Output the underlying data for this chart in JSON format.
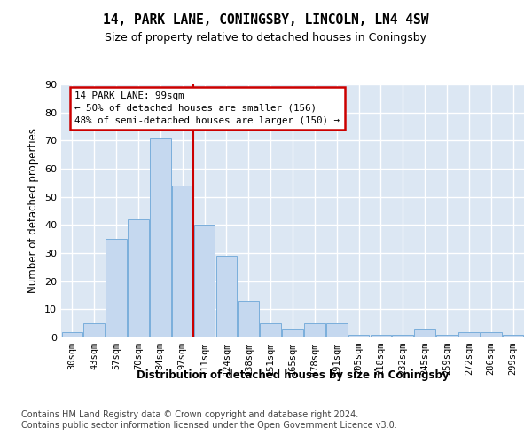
{
  "title": "14, PARK LANE, CONINGSBY, LINCOLN, LN4 4SW",
  "subtitle": "Size of property relative to detached houses in Coningsby",
  "xlabel": "Distribution of detached houses by size in Coningsby",
  "ylabel": "Number of detached properties",
  "bar_labels": [
    "30sqm",
    "43sqm",
    "57sqm",
    "70sqm",
    "84sqm",
    "97sqm",
    "111sqm",
    "124sqm",
    "138sqm",
    "151sqm",
    "165sqm",
    "178sqm",
    "191sqm",
    "205sqm",
    "218sqm",
    "232sqm",
    "245sqm",
    "259sqm",
    "272sqm",
    "286sqm",
    "299sqm"
  ],
  "bar_values": [
    2,
    5,
    35,
    42,
    71,
    54,
    40,
    29,
    13,
    5,
    3,
    5,
    5,
    1,
    1,
    1,
    3,
    1,
    2,
    2,
    1
  ],
  "bar_color": "#c5d8ef",
  "bar_edge_color": "#7aaedb",
  "background_color": "#dce7f3",
  "grid_color": "#ffffff",
  "vline_color": "#cc0000",
  "vline_x_bin": 5.5,
  "annotation_line1": "14 PARK LANE: 99sqm",
  "annotation_line2": "← 50% of detached houses are smaller (156)",
  "annotation_line3": "48% of semi-detached houses are larger (150) →",
  "ylim_max": 90,
  "yticks": [
    0,
    10,
    20,
    30,
    40,
    50,
    60,
    70,
    80,
    90
  ],
  "footer": "Contains HM Land Registry data © Crown copyright and database right 2024.\nContains public sector information licensed under the Open Government Licence v3.0."
}
